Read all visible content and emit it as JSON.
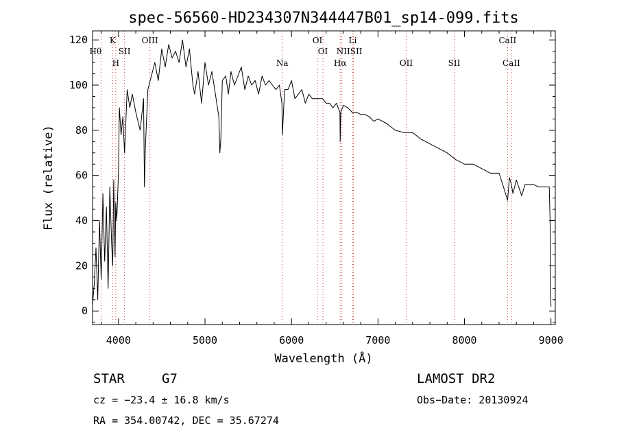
{
  "chart_data": {
    "type": "line",
    "title": "spec-56560-HD234307N344447B01_sp14-099.fits",
    "xlabel": "Wavelength (Å)",
    "ylabel": "Flux (relative)",
    "xlim": [
      3700,
      9050
    ],
    "ylim": [
      -6,
      124
    ],
    "xticks": [
      4000,
      5000,
      6000,
      7000,
      8000,
      9000
    ],
    "xtick_labels": [
      "4000",
      "5000",
      "6000",
      "7000",
      "8000",
      "9000"
    ],
    "yticks": [
      0,
      20,
      40,
      60,
      80,
      100,
      120
    ],
    "ytick_labels": [
      "0",
      "20",
      "40",
      "60",
      "80",
      "100",
      "120"
    ],
    "series": [
      {
        "name": "spectrum",
        "x": [
          3700,
          3720,
          3740,
          3760,
          3780,
          3800,
          3820,
          3840,
          3860,
          3880,
          3900,
          3920,
          3933,
          3945,
          3960,
          3968,
          3980,
          4000,
          4010,
          4030,
          4050,
          4070,
          4100,
          4130,
          4160,
          4200,
          4250,
          4290,
          4300,
          4310,
          4340,
          4380,
          4420,
          4460,
          4500,
          4540,
          4580,
          4620,
          4660,
          4700,
          4740,
          4780,
          4820,
          4860,
          4880,
          4920,
          4960,
          5000,
          5040,
          5080,
          5120,
          5160,
          5172,
          5183,
          5200,
          5240,
          5270,
          5300,
          5340,
          5380,
          5420,
          5460,
          5500,
          5540,
          5580,
          5620,
          5660,
          5700,
          5740,
          5780,
          5820,
          5860,
          5889,
          5895,
          5920,
          5960,
          6000,
          6040,
          6080,
          6120,
          6160,
          6200,
          6240,
          6280,
          6320,
          6360,
          6400,
          6440,
          6480,
          6520,
          6560,
          6563,
          6570,
          6600,
          6650,
          6700,
          6750,
          6800,
          6850,
          6900,
          6950,
          7000,
          7100,
          7200,
          7300,
          7400,
          7500,
          7600,
          7700,
          7800,
          7900,
          8000,
          8100,
          8200,
          8300,
          8400,
          8450,
          8498,
          8520,
          8542,
          8560,
          8600,
          8662,
          8700,
          8750,
          8800,
          8850,
          8900,
          8950,
          8980,
          8990,
          8995,
          9000
        ],
        "y": [
          3,
          12,
          28,
          5,
          40,
          14,
          52,
          22,
          46,
          10,
          55,
          30,
          20,
          58,
          24,
          48,
          40,
          62,
          90,
          78,
          86,
          70,
          98,
          90,
          96,
          88,
          80,
          94,
          55,
          72,
          98,
          104,
          110,
          102,
          116,
          108,
          118,
          112,
          115,
          110,
          120,
          108,
          116,
          100,
          96,
          106,
          92,
          110,
          100,
          106,
          96,
          86,
          70,
          76,
          102,
          104,
          96,
          106,
          100,
          104,
          108,
          98,
          104,
          100,
          102,
          96,
          104,
          100,
          102,
          100,
          98,
          100,
          92,
          78,
          98,
          98,
          102,
          94,
          96,
          98,
          92,
          96,
          94,
          94,
          94,
          94,
          92,
          92,
          90,
          92,
          88,
          75,
          88,
          91,
          90,
          88,
          88,
          87,
          87,
          86,
          84,
          85,
          83,
          80,
          79,
          79,
          76,
          74,
          72,
          70,
          67,
          65,
          65,
          63,
          61,
          61,
          55,
          49,
          59,
          56,
          52,
          58,
          51,
          56,
          56,
          56,
          55,
          55,
          55,
          55,
          40,
          10,
          2
        ]
      }
    ],
    "annotations": [
      {
        "label": "Hθ",
        "x": 3798
      },
      {
        "label": "K",
        "x": 3933
      },
      {
        "label": "H",
        "x": 3968
      },
      {
        "label": "SII",
        "x": 4069
      },
      {
        "label": "OIII",
        "x": 4363
      },
      {
        "label": "Na",
        "x": 5893
      },
      {
        "label": "OI",
        "x": 6300
      },
      {
        "label": "OI",
        "x": 6363
      },
      {
        "label": "Hα",
        "x": 6563
      },
      {
        "label": "NII",
        "x": 6583
      },
      {
        "label": "Li",
        "x": 6707
      },
      {
        "label": "SII",
        "x": 6717
      },
      {
        "label": "OII",
        "x": 7325
      },
      {
        "label": "SII",
        "x": 7881
      },
      {
        "label": "CaII",
        "x": 8498
      },
      {
        "label": "CaII",
        "x": 8542
      }
    ],
    "line_markers": [
      3798,
      3933,
      3968,
      4069,
      4363,
      5893,
      6300,
      6363,
      6563,
      6583,
      6707,
      6717,
      7325,
      7881,
      8498,
      8542
    ]
  },
  "info": {
    "object_class": "STAR",
    "subclass": "G7",
    "survey": "LAMOST DR2",
    "cz": "cz = −23.4 ± 16.8 km/s",
    "obs_date": "Obs−Date: 20130924",
    "coords": "RA = 354.00742, DEC =  35.67274"
  }
}
